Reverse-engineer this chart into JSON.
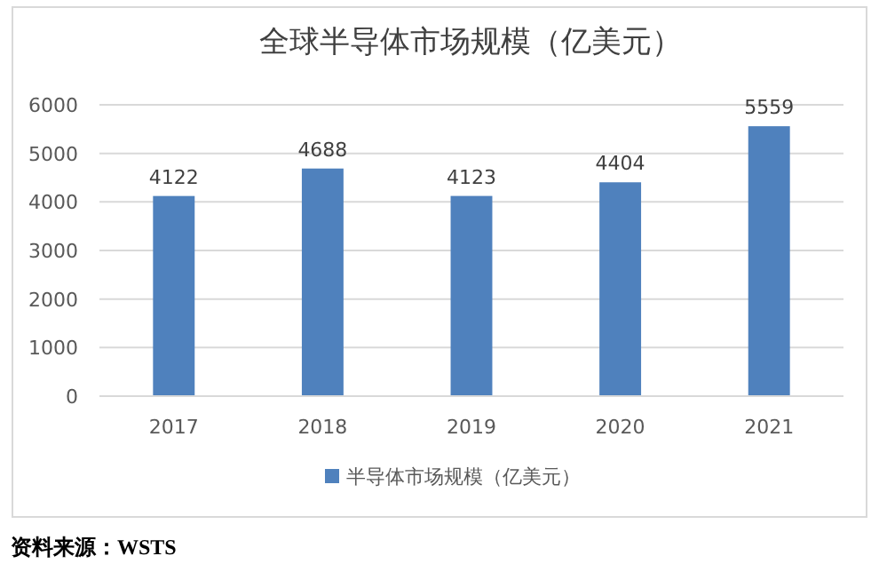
{
  "chart_data": {
    "type": "bar",
    "title": "全球半导体市场规模（亿美元）",
    "categories": [
      "2017",
      "2018",
      "2019",
      "2020",
      "2021"
    ],
    "series": [
      {
        "name": "半导体市场规模（亿美元）",
        "color": "#4f81bd",
        "values": [
          4122,
          4688,
          4123,
          4404,
          5559
        ]
      }
    ],
    "ylim": [
      0,
      6000
    ],
    "yticks": [
      0,
      1000,
      2000,
      3000,
      4000,
      5000,
      6000
    ],
    "grid": "y",
    "legend": "bottom",
    "data_labels": true,
    "annotations": [
      "资料来源：WSTS"
    ]
  }
}
